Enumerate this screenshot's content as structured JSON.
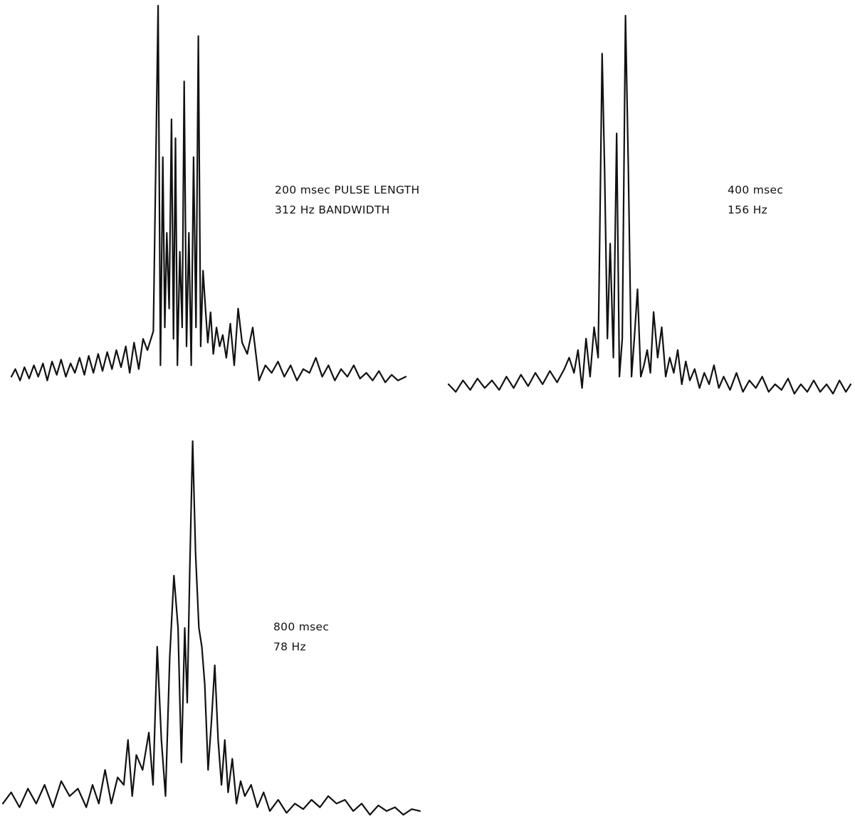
{
  "chart_data": [
    {
      "type": "line",
      "title": "",
      "annotation": [
        "200 msec PULSE LENGTH",
        "312 Hz BANDWIDTH"
      ],
      "xlabel": "",
      "ylabel": "",
      "grid": false,
      "axes_visible": false,
      "note": "waveform trace (relative amplitude, 0-1) sampled along the horizontal axis; no axis scales printed",
      "x": [
        0.0,
        0.01,
        0.022,
        0.033,
        0.045,
        0.057,
        0.068,
        0.08,
        0.091,
        0.103,
        0.115,
        0.126,
        0.138,
        0.15,
        0.161,
        0.173,
        0.185,
        0.196,
        0.208,
        0.22,
        0.231,
        0.243,
        0.255,
        0.266,
        0.278,
        0.29,
        0.3,
        0.311,
        0.323,
        0.334,
        0.345,
        0.36,
        0.372,
        0.378,
        0.384,
        0.389,
        0.394,
        0.4,
        0.406,
        0.411,
        0.416,
        0.421,
        0.427,
        0.433,
        0.438,
        0.444,
        0.45,
        0.456,
        0.462,
        0.468,
        0.474,
        0.48,
        0.486,
        0.492,
        0.498,
        0.505,
        0.512,
        0.52,
        0.528,
        0.536,
        0.545,
        0.555,
        0.565,
        0.575,
        0.585,
        0.598,
        0.612,
        0.628,
        0.644,
        0.66,
        0.676,
        0.692,
        0.708,
        0.724,
        0.74,
        0.756,
        0.772,
        0.788,
        0.804,
        0.82,
        0.836,
        0.852,
        0.868,
        0.884,
        0.9,
        0.916,
        0.932,
        0.948,
        0.964,
        0.98,
        1.0
      ],
      "y": [
        0.02,
        0.04,
        0.01,
        0.045,
        0.015,
        0.05,
        0.02,
        0.055,
        0.01,
        0.06,
        0.025,
        0.065,
        0.02,
        0.055,
        0.03,
        0.07,
        0.025,
        0.075,
        0.03,
        0.08,
        0.035,
        0.085,
        0.04,
        0.09,
        0.045,
        0.1,
        0.03,
        0.11,
        0.04,
        0.12,
        0.09,
        0.14,
        1.0,
        0.05,
        0.6,
        0.15,
        0.4,
        0.2,
        0.7,
        0.12,
        0.65,
        0.05,
        0.35,
        0.15,
        0.8,
        0.1,
        0.4,
        0.05,
        0.6,
        0.15,
        0.92,
        0.1,
        0.3,
        0.2,
        0.11,
        0.19,
        0.08,
        0.15,
        0.1,
        0.13,
        0.07,
        0.16,
        0.05,
        0.2,
        0.11,
        0.08,
        0.15,
        0.01,
        0.05,
        0.03,
        0.06,
        0.02,
        0.05,
        0.01,
        0.04,
        0.03,
        0.07,
        0.02,
        0.05,
        0.01,
        0.04,
        0.02,
        0.05,
        0.015,
        0.03,
        0.01,
        0.035,
        0.005,
        0.025,
        0.01,
        0.02
      ]
    },
    {
      "type": "line",
      "title": "",
      "annotation": [
        "400 msec",
        "156 Hz"
      ],
      "xlabel": "",
      "ylabel": "",
      "grid": false,
      "axes_visible": false,
      "note": "waveform trace (relative amplitude, 0-1) sampled along the horizontal axis; no axis scales printed",
      "x": [
        0.0,
        0.018,
        0.036,
        0.054,
        0.072,
        0.09,
        0.108,
        0.126,
        0.144,
        0.162,
        0.18,
        0.198,
        0.216,
        0.234,
        0.252,
        0.27,
        0.288,
        0.3,
        0.312,
        0.322,
        0.332,
        0.342,
        0.352,
        0.362,
        0.372,
        0.382,
        0.388,
        0.395,
        0.402,
        0.41,
        0.418,
        0.425,
        0.432,
        0.44,
        0.447,
        0.455,
        0.462,
        0.47,
        0.478,
        0.486,
        0.494,
        0.502,
        0.51,
        0.52,
        0.53,
        0.54,
        0.55,
        0.56,
        0.57,
        0.58,
        0.59,
        0.6,
        0.612,
        0.624,
        0.636,
        0.648,
        0.66,
        0.672,
        0.684,
        0.7,
        0.716,
        0.732,
        0.748,
        0.764,
        0.78,
        0.796,
        0.812,
        0.828,
        0.844,
        0.86,
        0.876,
        0.892,
        0.908,
        0.924,
        0.94,
        0.956,
        0.972,
        0.988,
        1.0
      ],
      "y": [
        0.03,
        0.01,
        0.04,
        0.015,
        0.045,
        0.02,
        0.04,
        0.015,
        0.05,
        0.02,
        0.055,
        0.025,
        0.06,
        0.03,
        0.065,
        0.035,
        0.07,
        0.1,
        0.06,
        0.12,
        0.02,
        0.15,
        0.05,
        0.18,
        0.1,
        0.9,
        0.6,
        0.15,
        0.4,
        0.1,
        0.69,
        0.05,
        0.15,
        1.0,
        0.6,
        0.05,
        0.15,
        0.28,
        0.05,
        0.08,
        0.12,
        0.06,
        0.22,
        0.1,
        0.18,
        0.05,
        0.1,
        0.06,
        0.12,
        0.03,
        0.09,
        0.04,
        0.07,
        0.02,
        0.06,
        0.03,
        0.08,
        0.02,
        0.05,
        0.015,
        0.06,
        0.01,
        0.04,
        0.02,
        0.05,
        0.01,
        0.03,
        0.015,
        0.045,
        0.005,
        0.03,
        0.01,
        0.04,
        0.01,
        0.03,
        0.005,
        0.04,
        0.01,
        0.03
      ]
    },
    {
      "type": "line",
      "title": "",
      "annotation": [
        "800 msec",
        "78 Hz"
      ],
      "xlabel": "",
      "ylabel": "",
      "grid": false,
      "axes_visible": false,
      "note": "waveform trace (relative amplitude, 0-1) sampled along the horizontal axis; no axis scales printed",
      "x": [
        0.0,
        0.02,
        0.04,
        0.06,
        0.08,
        0.1,
        0.12,
        0.14,
        0.16,
        0.18,
        0.2,
        0.215,
        0.23,
        0.245,
        0.26,
        0.275,
        0.29,
        0.3,
        0.31,
        0.32,
        0.335,
        0.35,
        0.36,
        0.37,
        0.38,
        0.39,
        0.4,
        0.41,
        0.42,
        0.428,
        0.436,
        0.442,
        0.448,
        0.455,
        0.462,
        0.47,
        0.477,
        0.484,
        0.492,
        0.5,
        0.508,
        0.516,
        0.524,
        0.532,
        0.54,
        0.55,
        0.56,
        0.57,
        0.58,
        0.595,
        0.61,
        0.625,
        0.64,
        0.66,
        0.68,
        0.7,
        0.72,
        0.74,
        0.76,
        0.78,
        0.8,
        0.82,
        0.84,
        0.86,
        0.88,
        0.9,
        0.92,
        0.94,
        0.96,
        0.98,
        1.0
      ],
      "y": [
        0.03,
        0.06,
        0.02,
        0.07,
        0.03,
        0.08,
        0.02,
        0.09,
        0.05,
        0.07,
        0.02,
        0.08,
        0.03,
        0.12,
        0.03,
        0.1,
        0.08,
        0.2,
        0.05,
        0.16,
        0.12,
        0.22,
        0.08,
        0.45,
        0.2,
        0.05,
        0.42,
        0.64,
        0.5,
        0.14,
        0.5,
        0.3,
        0.65,
        1.0,
        0.7,
        0.5,
        0.45,
        0.35,
        0.12,
        0.25,
        0.4,
        0.2,
        0.08,
        0.2,
        0.06,
        0.15,
        0.03,
        0.09,
        0.05,
        0.08,
        0.02,
        0.06,
        0.01,
        0.04,
        0.005,
        0.03,
        0.015,
        0.04,
        0.02,
        0.05,
        0.03,
        0.04,
        0.01,
        0.03,
        0.0,
        0.025,
        0.01,
        0.02,
        0.0,
        0.015,
        0.01
      ]
    }
  ]
}
